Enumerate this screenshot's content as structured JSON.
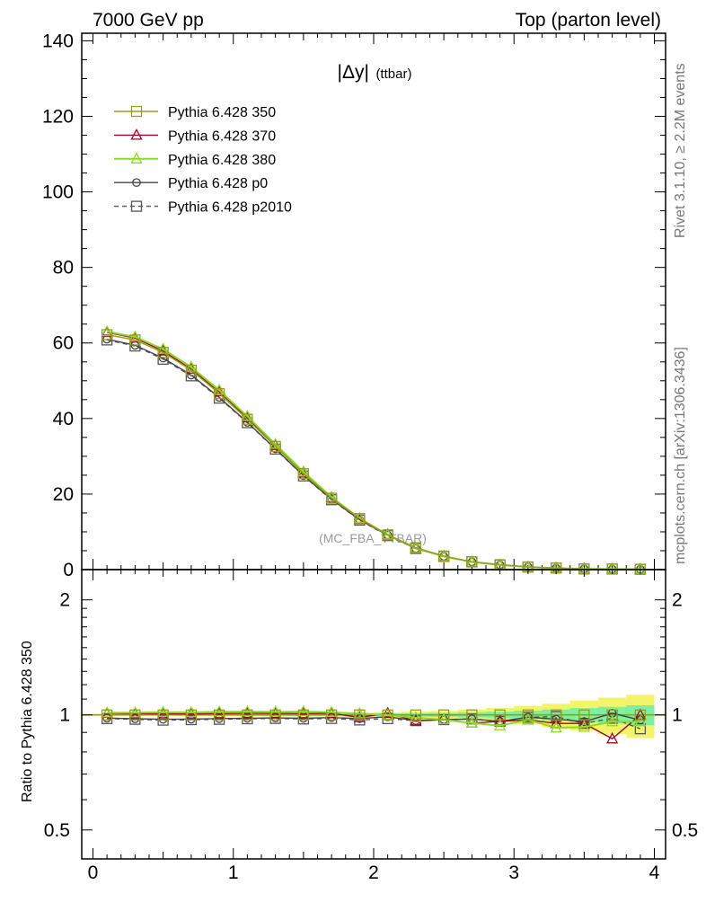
{
  "header": {
    "left": "7000 GeV pp",
    "right": "Top (parton level)"
  },
  "plot_title_main": "|Δy|",
  "plot_title_sub": "(ttbar)",
  "watermark": "(MC_FBA_TTBAR)",
  "side_text_top": "Rivet 3.1.10, ≥ 2.2M events",
  "side_text_bottom": "mcplots.cern.ch [arXiv:1306.3436]",
  "ratio_ylabel": "Ratio to Pythia 6.428 350",
  "colors": {
    "s350": "#9a9a1f",
    "s370": "#990a22",
    "s380": "#88dd22",
    "p0": "#444444",
    "p2010": "#555555",
    "band_outer": "#f4f46a",
    "band_inner": "#7ff0a0"
  },
  "chart_data": [
    {
      "type": "line",
      "panel": "main",
      "ylim": [
        0,
        142
      ],
      "xlim": [
        -0.08,
        4.08
      ],
      "yticks": [
        "0",
        "20",
        "40",
        "60",
        "80",
        "100",
        "120",
        "140"
      ],
      "x": [
        0.1,
        0.3,
        0.5,
        0.7,
        0.9,
        1.1,
        1.3,
        1.5,
        1.7,
        1.9,
        2.1,
        2.3,
        2.5,
        2.7,
        2.9,
        3.1,
        3.3,
        3.5,
        3.7,
        3.9
      ],
      "series": [
        {
          "name": "Pythia 6.428 350",
          "key": "s350",
          "marker": "square",
          "dash": false,
          "values": [
            62.2,
            60.8,
            57.5,
            52.8,
            46.6,
            39.8,
            32.6,
            25.4,
            18.9,
            13.5,
            9.2,
            5.8,
            3.6,
            2.1,
            1.3,
            0.7,
            0.4,
            0.2,
            0.15,
            0.1
          ]
        },
        {
          "name": "Pythia 6.428 370",
          "key": "s370",
          "marker": "triangle",
          "dash": false,
          "values": [
            62.8,
            61.3,
            57.9,
            53.1,
            47.1,
            40.2,
            32.9,
            25.6,
            19.1,
            13.3,
            9.3,
            5.6,
            3.5,
            2.0,
            1.25,
            0.68,
            0.38,
            0.19,
            0.13,
            0.1
          ]
        },
        {
          "name": "Pythia 6.428 380",
          "key": "s380",
          "marker": "triangle",
          "dash": false,
          "values": [
            63.0,
            61.6,
            58.4,
            53.6,
            47.5,
            40.6,
            33.2,
            25.9,
            19.2,
            13.6,
            9.2,
            5.7,
            3.5,
            2.0,
            1.25,
            0.68,
            0.37,
            0.19,
            0.14,
            0.1
          ]
        },
        {
          "name": "Pythia 6.428 p0",
          "key": "p0",
          "marker": "circle",
          "dash": false,
          "values": [
            61.0,
            59.4,
            56.0,
            51.5,
            45.6,
            39.0,
            32.0,
            24.9,
            18.6,
            13.2,
            9.1,
            5.6,
            3.5,
            2.05,
            1.25,
            0.69,
            0.39,
            0.2,
            0.15,
            0.1
          ]
        },
        {
          "name": "Pythia 6.428 p2010",
          "key": "p2010",
          "marker": "square",
          "dash": true,
          "values": [
            60.8,
            59.2,
            55.7,
            51.3,
            45.4,
            38.9,
            31.9,
            24.8,
            18.5,
            13.1,
            9.0,
            5.6,
            3.5,
            2.05,
            1.25,
            0.69,
            0.39,
            0.19,
            0.14,
            0.09
          ]
        }
      ]
    },
    {
      "type": "line",
      "panel": "ratio",
      "yscale": "log",
      "ylim": [
        0.42,
        2.4
      ],
      "yticks": [
        "0.5",
        "1",
        "2"
      ],
      "xticks": [
        "0",
        "1",
        "2",
        "3",
        "4"
      ],
      "xlim": [
        -0.08,
        4.08
      ],
      "x": [
        0.1,
        0.3,
        0.5,
        0.7,
        0.9,
        1.1,
        1.3,
        1.5,
        1.7,
        1.9,
        2.1,
        2.3,
        2.5,
        2.7,
        2.9,
        3.1,
        3.3,
        3.5,
        3.7,
        3.9
      ],
      "band_outer": [
        0.006,
        0.006,
        0.006,
        0.007,
        0.007,
        0.008,
        0.009,
        0.01,
        0.011,
        0.013,
        0.016,
        0.02,
        0.025,
        0.033,
        0.043,
        0.055,
        0.07,
        0.09,
        0.11,
        0.13
      ],
      "band_inner": [
        0.003,
        0.003,
        0.003,
        0.003,
        0.004,
        0.004,
        0.005,
        0.005,
        0.006,
        0.007,
        0.008,
        0.01,
        0.012,
        0.016,
        0.02,
        0.026,
        0.033,
        0.042,
        0.05,
        0.06
      ],
      "series": [
        {
          "key": "s370",
          "marker": "triangle",
          "dash": false,
          "values": [
            1.01,
            1.008,
            1.007,
            1.006,
            1.008,
            1.01,
            1.009,
            1.008,
            1.01,
            0.985,
            1.01,
            0.965,
            0.972,
            0.952,
            0.962,
            0.971,
            0.95,
            0.95,
            0.866,
            1.0
          ]
        },
        {
          "key": "s380",
          "marker": "triangle",
          "dash": false,
          "values": [
            1.013,
            1.013,
            1.016,
            1.015,
            1.019,
            1.02,
            1.018,
            1.02,
            1.016,
            1.007,
            1.0,
            0.983,
            0.972,
            0.952,
            0.937,
            0.971,
            0.925,
            0.929,
            0.96,
            0.96
          ]
        },
        {
          "key": "p0",
          "marker": "circle",
          "dash": false,
          "values": [
            0.981,
            0.977,
            0.974,
            0.975,
            0.978,
            0.98,
            0.982,
            0.98,
            0.984,
            0.978,
            0.989,
            0.966,
            0.972,
            0.976,
            0.962,
            0.986,
            0.975,
            0.96,
            1.01,
            0.97
          ]
        },
        {
          "key": "p2010",
          "marker": "square",
          "dash": true,
          "values": [
            0.978,
            0.974,
            0.969,
            0.972,
            0.974,
            0.977,
            0.979,
            0.976,
            0.979,
            0.97,
            0.978,
            0.966,
            0.972,
            0.976,
            0.962,
            0.986,
            0.99,
            0.95,
            0.98,
            0.92
          ]
        }
      ]
    }
  ]
}
